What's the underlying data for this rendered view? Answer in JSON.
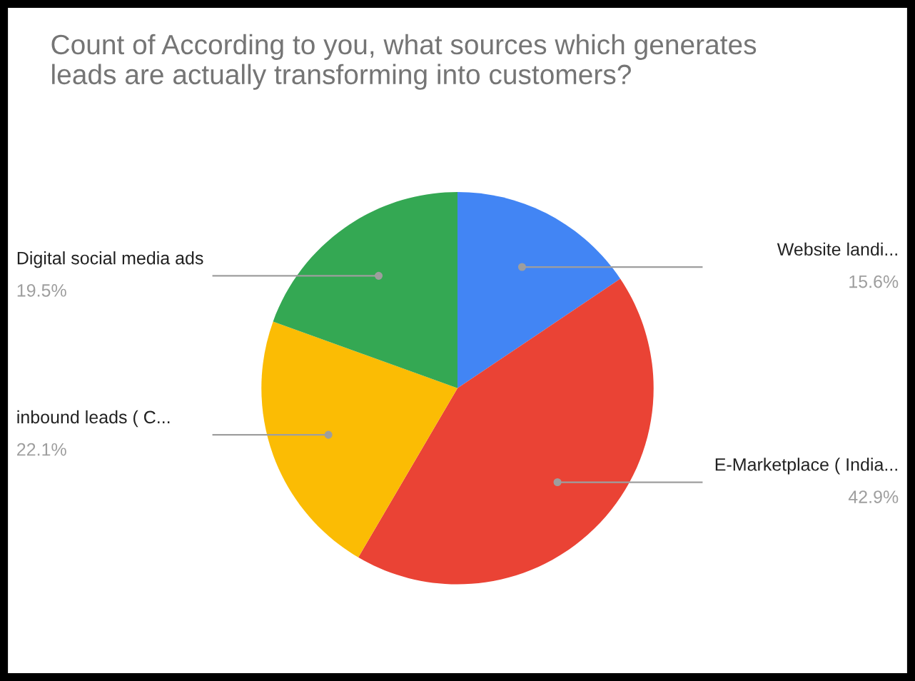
{
  "chart_data": {
    "type": "pie",
    "title": "Count of According to you, what sources which generates\nleads are actually transforming into customers?",
    "categories": [
      "Website landi...",
      "E-Marketplace ( India...",
      "inbound leads ( C...",
      "Digital social media ads"
    ],
    "values": [
      15.6,
      42.9,
      22.1,
      19.5
    ],
    "value_labels": [
      "15.6%",
      "42.9%",
      "22.1%",
      "19.5%"
    ],
    "colors": [
      "#4285f4",
      "#ea4335",
      "#fbbc04",
      "#34a853"
    ],
    "legend": false
  }
}
